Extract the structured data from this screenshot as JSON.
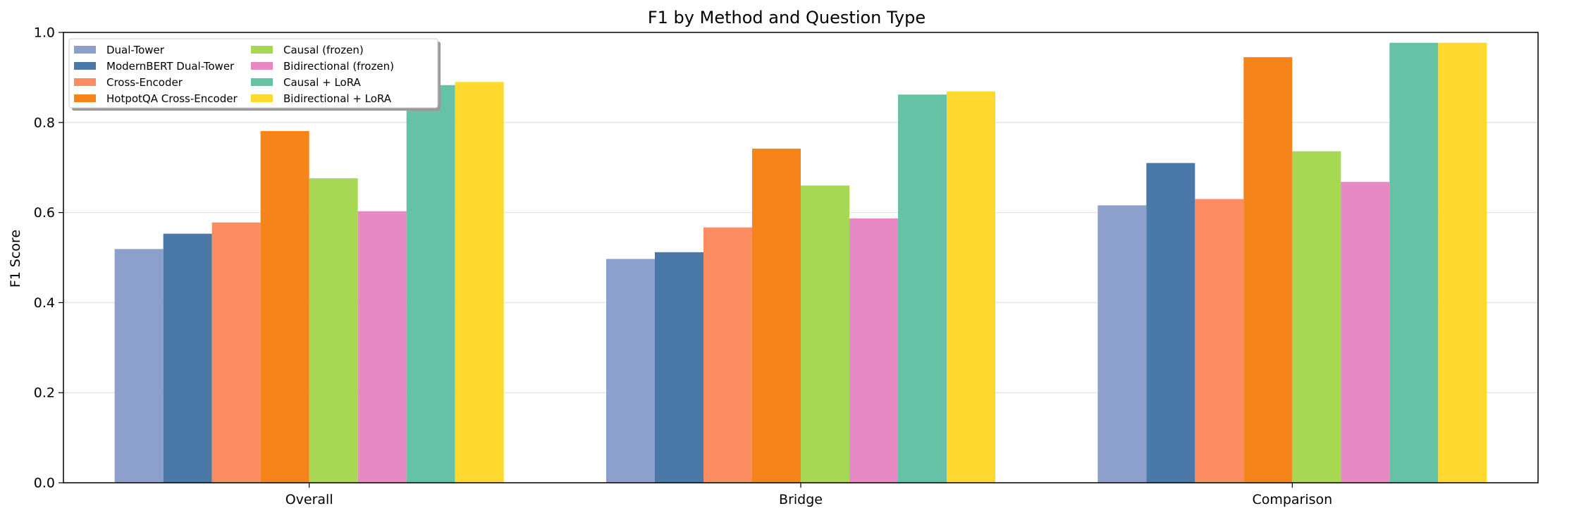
{
  "chart_data": {
    "type": "bar",
    "title": "F1 by Method and Question Type",
    "xlabel": "",
    "ylabel": "F1 Score",
    "ylim": [
      0,
      1.0
    ],
    "yticks": [
      "0.0",
      "0.2",
      "0.4",
      "0.6",
      "0.8",
      "1.0"
    ],
    "grid": "horizontal",
    "legend_placement": "top-left",
    "categories": [
      "Overall",
      "Bridge",
      "Comparison"
    ],
    "series": [
      {
        "name": "Dual-Tower",
        "color": "#8da0cb",
        "values": [
          0.519,
          0.497,
          0.616
        ]
      },
      {
        "name": "ModernBERT Dual-Tower",
        "color": "#4a78a8",
        "values": [
          0.553,
          0.512,
          0.71
        ]
      },
      {
        "name": "Cross-Encoder",
        "color": "#fc8d62",
        "values": [
          0.578,
          0.567,
          0.63
        ]
      },
      {
        "name": "HotpotQA Cross-Encoder",
        "color": "#f5841a",
        "values": [
          0.781,
          0.742,
          0.945
        ]
      },
      {
        "name": "Causal (frozen)",
        "color": "#a6d854",
        "values": [
          0.676,
          0.66,
          0.736
        ]
      },
      {
        "name": "Bidirectional (frozen)",
        "color": "#e78ac3",
        "values": [
          0.603,
          0.587,
          0.668
        ]
      },
      {
        "name": "Causal + LoRA",
        "color": "#66c2a5",
        "values": [
          0.883,
          0.862,
          0.977
        ]
      },
      {
        "name": "Bidirectional + LoRA",
        "color": "#ffd92f",
        "values": [
          0.89,
          0.869,
          0.977
        ]
      }
    ]
  }
}
